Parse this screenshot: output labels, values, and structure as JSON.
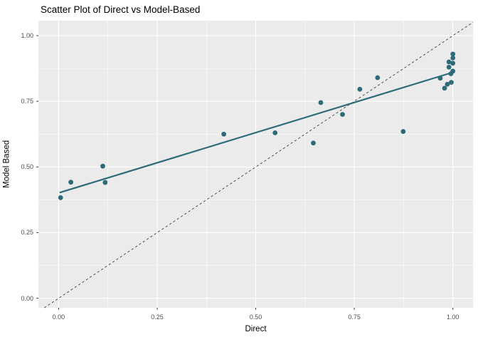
{
  "title": "Scatter Plot of Direct vs Model-Based",
  "chart_data": {
    "type": "scatter",
    "title": "Scatter Plot of Direct vs Model-Based",
    "xlabel": "Direct",
    "ylabel": "Model Based",
    "xlim": [
      -0.0513,
      1.0511
    ],
    "ylim": [
      -0.0364,
      1.0571
    ],
    "x_tick_values": [
      0,
      0.25,
      0.5,
      0.75,
      1.0
    ],
    "x_tick_labels": [
      "0.00",
      "0.25",
      "0.50",
      "0.75",
      "1.00"
    ],
    "y_tick_values": [
      0,
      0.25,
      0.5,
      0.75,
      1.0
    ],
    "y_tick_labels": [
      "0.00",
      "0.25",
      "0.50",
      "0.75",
      "1.00"
    ],
    "minor_x_values": [
      0.125,
      0.375,
      0.625,
      0.875
    ],
    "minor_y_values": [
      0.125,
      0.375,
      0.625,
      0.875
    ],
    "grid": "on",
    "legend": "none",
    "points": [
      [
        0.005,
        0.383
      ],
      [
        0.031,
        0.442
      ],
      [
        0.112,
        0.503
      ],
      [
        0.118,
        0.441
      ],
      [
        0.419,
        0.625
      ],
      [
        0.549,
        0.63
      ],
      [
        0.646,
        0.591
      ],
      [
        0.665,
        0.745
      ],
      [
        0.72,
        0.7
      ],
      [
        0.764,
        0.796
      ],
      [
        0.809,
        0.84
      ],
      [
        0.874,
        0.635
      ],
      [
        0.968,
        0.838
      ],
      [
        0.979,
        0.8
      ],
      [
        0.986,
        0.815
      ],
      [
        0.996,
        0.822
      ],
      [
        0.99,
        0.9
      ],
      [
        0.99,
        0.88
      ],
      [
        0.995,
        0.855
      ],
      [
        1.0,
        0.93
      ],
      [
        1.0,
        0.915
      ],
      [
        1.0,
        0.895
      ],
      [
        1.0,
        0.865
      ]
    ],
    "trend_line": {
      "x1": 0.004,
      "y1": 0.403,
      "x2": 0.995,
      "y2": 0.858,
      "style": "solid"
    },
    "identity_line": {
      "x1": -0.0364,
      "y1": -0.0364,
      "x2": 1.0511,
      "y2": 1.0511,
      "style": "dashed"
    },
    "colors": {
      "point": "#2E6B7A",
      "trend_line": "#2E6B7A",
      "identity_line": "#3C3C3C",
      "panel_background": "#EBEBEB",
      "gridline": "#FFFFFF",
      "tick_text": "#4D4D4D",
      "tick_mark": "#333333"
    }
  }
}
